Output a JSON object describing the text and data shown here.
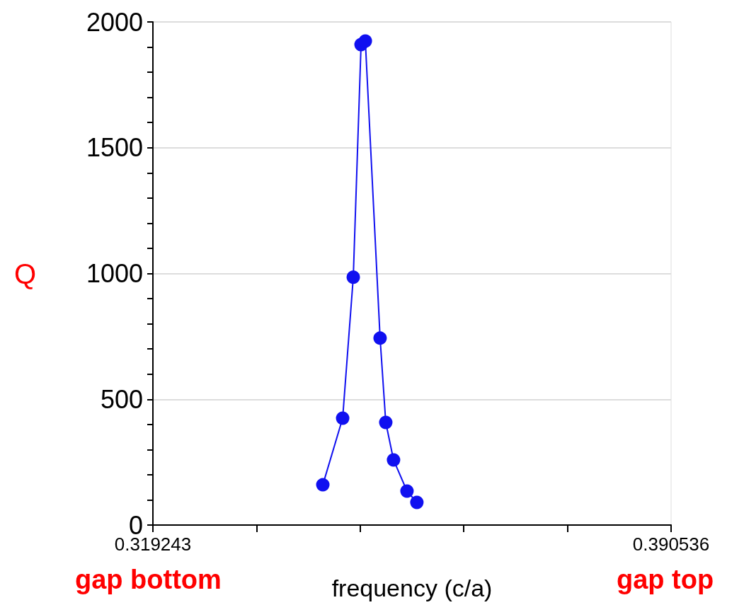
{
  "chart_data": {
    "type": "line",
    "xlabel": "frequency (c/a)",
    "ylabel": "Q",
    "x": [
      0.34262,
      0.34535,
      0.34681,
      0.34788,
      0.34847,
      0.3505,
      0.35128,
      0.35235,
      0.3542,
      0.35556
    ],
    "series": [
      {
        "color": "#1010f0",
        "values": [
          160,
          425,
          985,
          1910,
          1924,
          743,
          408,
          259,
          135,
          90
        ]
      }
    ],
    "xlim": [
      0.319243,
      0.390536
    ],
    "xticks": [
      0.319243,
      {
        "value": 0.3335016,
        "label": null
      },
      {
        "value": 0.3477602,
        "label": null
      },
      {
        "value": 0.3620188,
        "label": null
      },
      {
        "value": 0.3762774,
        "label": null
      },
      0.390536
    ],
    "ylim": [
      0,
      2000
    ],
    "yticks": [
      0,
      {
        "value": 100,
        "label": null
      },
      {
        "value": 200,
        "label": null
      },
      {
        "value": 300,
        "label": null
      },
      {
        "value": 400,
        "label": null
      },
      500,
      {
        "value": 600,
        "label": null
      },
      {
        "value": 700,
        "label": null
      },
      {
        "value": 800,
        "label": null
      },
      {
        "value": 900,
        "label": null
      },
      1000,
      {
        "value": 1100,
        "label": null
      },
      {
        "value": 1200,
        "label": null
      },
      {
        "value": 1300,
        "label": null
      },
      {
        "value": 1400,
        "label": null
      },
      1500,
      {
        "value": 1600,
        "label": null
      },
      {
        "value": 1700,
        "label": null
      },
      {
        "value": 1800,
        "label": null
      },
      {
        "value": 1900,
        "label": null
      },
      2000
    ],
    "grid": "y",
    "marker": "circle",
    "line_style": "solid",
    "annotations": [
      "gap bottom",
      "gap top"
    ]
  }
}
